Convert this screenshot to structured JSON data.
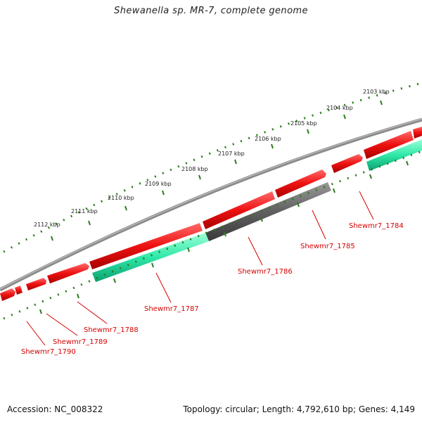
{
  "title": "Shewanella sp. MR-7, complete genome",
  "footer": {
    "accession_label": "Accession:",
    "accession": "NC_008322",
    "topology_label": "Topology:",
    "topology": "circular",
    "length_label": "Length:",
    "length": "4,792,610 bp",
    "genes_label": "Genes:",
    "genes": "4,149"
  },
  "scale": {
    "unit": "kbp",
    "ticks": [
      "2103 kbp",
      "2104 kbp",
      "2105 kbp",
      "2106 kbp",
      "2107 kbp",
      "2108 kbp",
      "2109 kbp",
      "2110 kbp",
      "2111 kbp",
      "2112 kbp"
    ]
  },
  "colors": {
    "forward_cds": "#ee1111",
    "reverse_cds_a": "#2fe8a8",
    "reverse_cds_b": "#606060",
    "backbone": "#8a8a8a",
    "tick": "#2e7d1e",
    "label": "#d40000"
  },
  "genes": [
    {
      "label": "Shewmr7_1784",
      "strand": "reverse"
    },
    {
      "label": "Shewmr7_1785",
      "strand": "reverse"
    },
    {
      "label": "Shewmr7_1786",
      "strand": "forward"
    },
    {
      "label": "Shewmr7_1787",
      "strand": "reverse"
    },
    {
      "label": "Shewmr7_1788",
      "strand": "forward"
    },
    {
      "label": "Shewmr7_1789",
      "strand": "forward"
    },
    {
      "label": "Shewmr7_1790",
      "strand": "forward"
    }
  ]
}
